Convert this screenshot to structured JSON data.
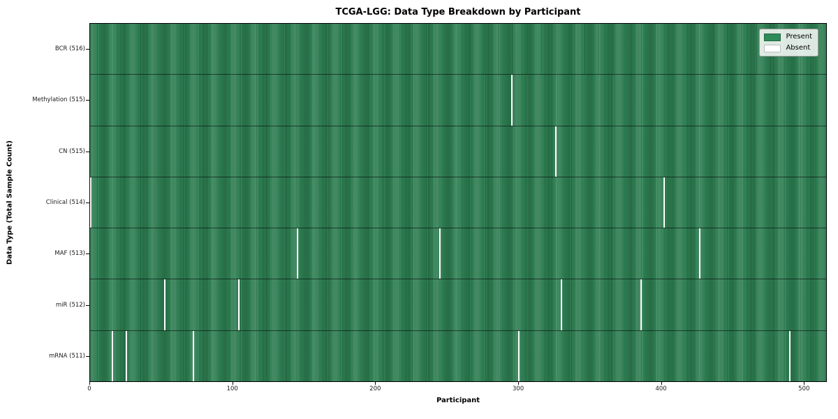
{
  "figure": {
    "title": "TCGA-LGG: Data Type Breakdown by Participant",
    "xlabel": "Participant",
    "ylabel": "Data Type (Total Sample Count)"
  },
  "legend": {
    "items": [
      {
        "name": "present",
        "label": "Present",
        "color": "#2f8b58"
      },
      {
        "name": "absent",
        "label": "Absent",
        "color": "#ffffff"
      }
    ],
    "position": "upper-right"
  },
  "chart_data": {
    "type": "heatmap",
    "title": "TCGA-LGG: Data Type Breakdown by Participant",
    "xlabel": "Participant",
    "ylabel": "Data Type (Total Sample Count)",
    "x_range": [
      0,
      516
    ],
    "xticks": [
      0,
      100,
      200,
      300,
      400,
      500
    ],
    "n_participants": 516,
    "present_color": "#2f8b58",
    "absent_color": "#ffffff",
    "grid": false,
    "legend_entries": [
      "Present",
      "Absent"
    ],
    "legend_position": "upper right",
    "rows": [
      {
        "data_type": "BCR",
        "label": "BCR (516)",
        "sample_count": 516,
        "absent_participants": []
      },
      {
        "data_type": "Methylation",
        "label": "Methylation (515)",
        "sample_count": 515,
        "absent_participants": [
          295
        ]
      },
      {
        "data_type": "CN",
        "label": "CN (515)",
        "sample_count": 515,
        "absent_participants": [
          326
        ]
      },
      {
        "data_type": "Clinical",
        "label": "Clinical (514)",
        "sample_count": 514,
        "absent_participants": [
          0,
          402
        ]
      },
      {
        "data_type": "MAF",
        "label": "MAF (513)",
        "sample_count": 513,
        "absent_participants": [
          145,
          245,
          427
        ]
      },
      {
        "data_type": "miR",
        "label": "miR (512)",
        "sample_count": 512,
        "absent_participants": [
          52,
          104,
          330,
          386
        ]
      },
      {
        "data_type": "mRNA",
        "label": "mRNA (511)",
        "sample_count": 511,
        "absent_participants": [
          15,
          25,
          72,
          300,
          490
        ]
      }
    ]
  }
}
